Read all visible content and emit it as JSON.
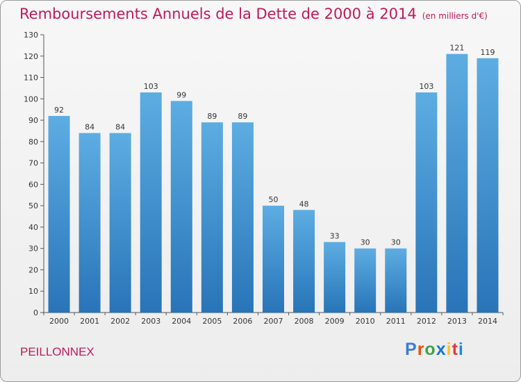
{
  "title": {
    "main": "Remboursements Annuels de la Dette de 2000 à 2014",
    "sub": "(en milliers d'€)"
  },
  "commune": "PEILLONNEX",
  "logo": {
    "text": "Proxiti",
    "letter_colors": [
      "#3a7bd5",
      "#e65100",
      "#43a047",
      "#1976d2",
      "#fbc02d",
      "#e53935",
      "#1e88e5"
    ]
  },
  "chart_data": {
    "type": "bar",
    "categories": [
      "2000",
      "2001",
      "2002",
      "2003",
      "2004",
      "2005",
      "2006",
      "2007",
      "2008",
      "2009",
      "2010",
      "2011",
      "2012",
      "2013",
      "2014"
    ],
    "values": [
      92,
      84,
      84,
      103,
      99,
      89,
      89,
      50,
      48,
      33,
      30,
      30,
      103,
      121,
      119
    ],
    "title": "Remboursements Annuels de la Dette de 2000 à 2014",
    "ylim": [
      0,
      130
    ],
    "yticks": [
      0,
      10,
      20,
      30,
      40,
      50,
      60,
      70,
      80,
      90,
      100,
      110,
      120,
      130
    ],
    "grid": false,
    "colors": {
      "bar_top": "#5dade2",
      "bar_bottom": "#2874b8"
    }
  }
}
